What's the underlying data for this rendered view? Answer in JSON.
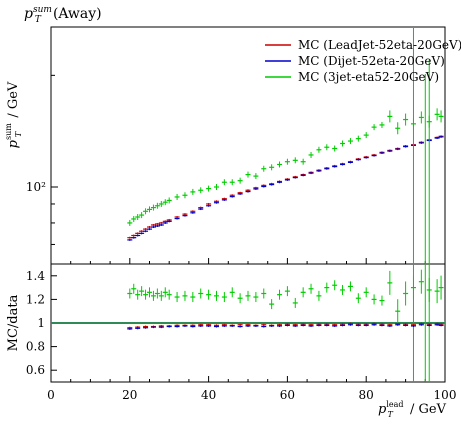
{
  "chart_data": [
    {
      "type": "scatter",
      "panel": "main",
      "title": "p_T^sum (Away)",
      "ylabel": "p_T^sum / GeV",
      "xlabel": "p_T^lead / GeV",
      "yscale": "log",
      "xlim": [
        0,
        100
      ],
      "ylim": [
        62,
        270
      ],
      "y_ticks": [
        100
      ],
      "y_tick_labels": [
        "10²"
      ],
      "x_ticks": [
        0,
        20,
        40,
        60,
        80,
        100
      ],
      "x_tick_labels": [
        "0",
        "20",
        "40",
        "60",
        "80",
        "100"
      ],
      "legend_position": "top-right",
      "grid": false,
      "series": [
        {
          "name": "MC (LeadJet-52eta-20GeV)",
          "color": "#cc0000",
          "x": [
            20,
            21,
            22,
            23,
            24,
            25,
            26,
            27,
            28,
            29,
            30,
            32,
            34,
            36,
            38,
            40,
            42,
            44,
            46,
            48,
            50,
            52,
            54,
            56,
            58,
            60,
            62,
            64,
            66,
            68,
            70,
            72,
            74,
            76,
            78,
            80,
            82,
            84,
            86,
            88,
            90,
            92,
            94,
            96,
            98,
            99
          ],
          "y": [
            73,
            74,
            75,
            76,
            77,
            78,
            79,
            79.5,
            80,
            80.8,
            81.5,
            83,
            84.5,
            86,
            88,
            90,
            91.5,
            93,
            95,
            96.5,
            98,
            99.5,
            101,
            102,
            103.5,
            105,
            106.5,
            108,
            109.5,
            111,
            112.5,
            114,
            115.5,
            117,
            119,
            120.5,
            122,
            124,
            125.5,
            127,
            129,
            130,
            132,
            134,
            136,
            137
          ]
        },
        {
          "name": "MC (Dijet-52eta-20GeV)",
          "color": "#0000cc",
          "x": [
            20,
            21,
            22,
            23,
            24,
            25,
            26,
            27,
            28,
            29,
            30,
            32,
            34,
            36,
            38,
            40,
            42,
            44,
            46,
            48,
            50,
            52,
            54,
            56,
            58,
            60,
            62,
            64,
            66,
            68,
            70,
            72,
            74,
            76,
            78,
            80,
            82,
            84,
            86,
            88,
            90,
            92,
            94,
            96,
            98,
            99
          ],
          "y": [
            72,
            73,
            74,
            75,
            76,
            77,
            78,
            78.5,
            79,
            80,
            80.8,
            82.2,
            83.7,
            85.2,
            87.2,
            89,
            90.7,
            92.3,
            94.2,
            95.8,
            97.2,
            98.8,
            100.3,
            101.5,
            103,
            104.5,
            106,
            107.5,
            109,
            110.5,
            112,
            113.5,
            115,
            116.5,
            118.5,
            120,
            121.5,
            123.5,
            125,
            126.5,
            128.5,
            129.5,
            131.5,
            133.5,
            135.5,
            136.5
          ]
        },
        {
          "name": "MC (3jet-eta52-20GeV)",
          "color": "#00cc00",
          "x": [
            20,
            21,
            22,
            23,
            24,
            25,
            26,
            27,
            28,
            29,
            30,
            32,
            34,
            36,
            38,
            40,
            42,
            44,
            46,
            48,
            50,
            52,
            54,
            56,
            58,
            60,
            62,
            64,
            66,
            68,
            70,
            72,
            74,
            76,
            78,
            80,
            82,
            84,
            86,
            88,
            90,
            92,
            94,
            96,
            98,
            99
          ],
          "y": [
            80,
            82,
            83,
            84,
            86,
            87,
            88,
            89,
            90,
            91,
            92,
            94,
            95,
            97,
            98,
            99,
            100,
            103,
            103,
            104,
            108,
            107,
            112,
            113,
            115,
            117,
            118,
            117,
            122,
            126,
            128,
            127,
            131,
            133,
            135,
            138,
            145,
            147,
            155,
            144,
            152,
            148,
            154,
            150,
            157,
            155
          ]
        }
      ]
    },
    {
      "type": "scatter",
      "panel": "ratio",
      "ylabel": "MC/data",
      "xlabel": "p_T^lead / GeV",
      "xlim": [
        0,
        100
      ],
      "ylim": [
        0.5,
        1.5
      ],
      "y_ticks": [
        0.6,
        0.8,
        1.0,
        1.2,
        1.4
      ],
      "y_tick_labels": [
        "0.6",
        "0.8",
        "1",
        "1.2",
        "1.4"
      ],
      "x_ticks": [
        0,
        20,
        40,
        60,
        80,
        100
      ],
      "x_tick_labels": [
        "0",
        "20",
        "40",
        "60",
        "80",
        "100"
      ],
      "reference_line": 1.0,
      "series": [
        {
          "name": "MC (LeadJet-52eta-20GeV)",
          "color": "#cc0000",
          "x": [
            20,
            22,
            24,
            26,
            28,
            30,
            32,
            34,
            36,
            38,
            40,
            42,
            44,
            46,
            48,
            50,
            52,
            54,
            56,
            58,
            60,
            62,
            64,
            66,
            68,
            70,
            72,
            74,
            76,
            78,
            80,
            82,
            84,
            86,
            88,
            90,
            92,
            94,
            96,
            98,
            99
          ],
          "y": [
            0.96,
            0.965,
            0.97,
            0.97,
            0.975,
            0.975,
            0.98,
            0.98,
            0.98,
            0.985,
            0.985,
            0.98,
            0.985,
            0.98,
            0.985,
            0.985,
            0.98,
            0.985,
            0.98,
            0.985,
            0.99,
            0.985,
            0.99,
            0.985,
            0.99,
            0.99,
            0.985,
            0.99,
            0.995,
            0.99,
            0.99,
            0.995,
            0.99,
            0.985,
            0.995,
            0.99,
            0.985,
            0.995,
            0.99,
            0.995,
            0.99
          ]
        },
        {
          "name": "MC (Dijet-52eta-20GeV)",
          "color": "#0000cc",
          "x": [
            20,
            22,
            24,
            26,
            28,
            30,
            32,
            34,
            36,
            38,
            40,
            42,
            44,
            46,
            48,
            50,
            52,
            54,
            56,
            58,
            60,
            62,
            64,
            66,
            68,
            70,
            72,
            74,
            76,
            78,
            80,
            82,
            84,
            86,
            88,
            90,
            92,
            94,
            96,
            98,
            99
          ],
          "y": [
            0.95,
            0.955,
            0.96,
            0.965,
            0.965,
            0.97,
            0.97,
            0.975,
            0.97,
            0.975,
            0.975,
            0.97,
            0.975,
            0.975,
            0.97,
            0.975,
            0.975,
            0.97,
            0.975,
            0.975,
            0.98,
            0.975,
            0.98,
            0.975,
            0.98,
            0.98,
            0.975,
            0.98,
            0.985,
            0.98,
            0.98,
            0.985,
            0.98,
            0.975,
            0.985,
            0.98,
            0.975,
            0.985,
            0.98,
            0.985,
            0.98
          ]
        },
        {
          "name": "MC (3jet-eta52-20GeV)",
          "color": "#00cc00",
          "x": [
            20,
            21,
            22,
            23,
            24,
            25,
            26,
            27,
            28,
            29,
            30,
            32,
            34,
            36,
            38,
            40,
            42,
            44,
            46,
            48,
            50,
            52,
            54,
            56,
            58,
            60,
            62,
            64,
            66,
            68,
            70,
            72,
            74,
            76,
            78,
            80,
            82,
            84,
            86,
            88,
            90,
            92,
            94,
            96,
            98,
            99
          ],
          "y": [
            1.25,
            1.29,
            1.24,
            1.27,
            1.24,
            1.26,
            1.23,
            1.25,
            1.23,
            1.26,
            1.24,
            1.22,
            1.23,
            1.22,
            1.25,
            1.24,
            1.23,
            1.22,
            1.26,
            1.21,
            1.23,
            1.22,
            1.25,
            1.16,
            1.24,
            1.27,
            1.17,
            1.26,
            1.29,
            1.23,
            1.3,
            1.32,
            1.28,
            1.31,
            1.21,
            1.26,
            1.2,
            1.19,
            1.34,
            1.1,
            1.25,
            1.3,
            1.35,
            1.28,
            1.27,
            1.3
          ]
        }
      ]
    }
  ]
}
